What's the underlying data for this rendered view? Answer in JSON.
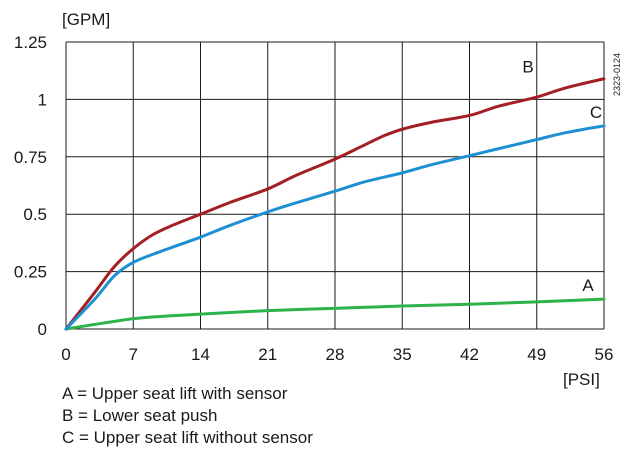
{
  "chart_data": {
    "type": "line",
    "xlabel": "[PSI]",
    "ylabel": "[GPM]",
    "xlim": [
      0,
      56
    ],
    "ylim": [
      0,
      1.25
    ],
    "x_ticks": [
      "0",
      "7",
      "14",
      "21",
      "28",
      "35",
      "42",
      "49",
      "56"
    ],
    "y_ticks": [
      "0",
      "0.25",
      "0.5",
      "0.75",
      "1",
      "1.25"
    ],
    "grid": true,
    "figure_code": "2323-0124",
    "series": [
      {
        "name": "A",
        "color": "#2db34a",
        "x": [
          0,
          3,
          7,
          10,
          14,
          21,
          28,
          35,
          42,
          49,
          56
        ],
        "y": [
          0,
          0.02,
          0.045,
          0.055,
          0.065,
          0.08,
          0.09,
          0.1,
          0.108,
          0.118,
          0.13
        ]
      },
      {
        "name": "B",
        "color": "#a31f24",
        "x": [
          0,
          3,
          5,
          7,
          9,
          11,
          14,
          17,
          21,
          24,
          28,
          31,
          33,
          35,
          38,
          42,
          45,
          49,
          52,
          56
        ],
        "y": [
          0,
          0.16,
          0.27,
          0.35,
          0.41,
          0.45,
          0.5,
          0.55,
          0.61,
          0.67,
          0.74,
          0.8,
          0.84,
          0.87,
          0.9,
          0.93,
          0.97,
          1.01,
          1.05,
          1.09
        ]
      },
      {
        "name": "C",
        "color": "#1e90d2",
        "x": [
          0,
          3,
          5,
          7,
          10,
          14,
          17,
          21,
          24,
          28,
          31,
          35,
          38,
          42,
          45,
          49,
          52,
          56
        ],
        "y": [
          0,
          0.13,
          0.23,
          0.29,
          0.34,
          0.4,
          0.45,
          0.51,
          0.55,
          0.6,
          0.64,
          0.68,
          0.715,
          0.755,
          0.785,
          0.825,
          0.855,
          0.885
        ]
      }
    ],
    "legend": [
      "A = Upper seat lift with sensor",
      "B = Lower seat push",
      "C = Upper seat lift without sensor"
    ]
  }
}
